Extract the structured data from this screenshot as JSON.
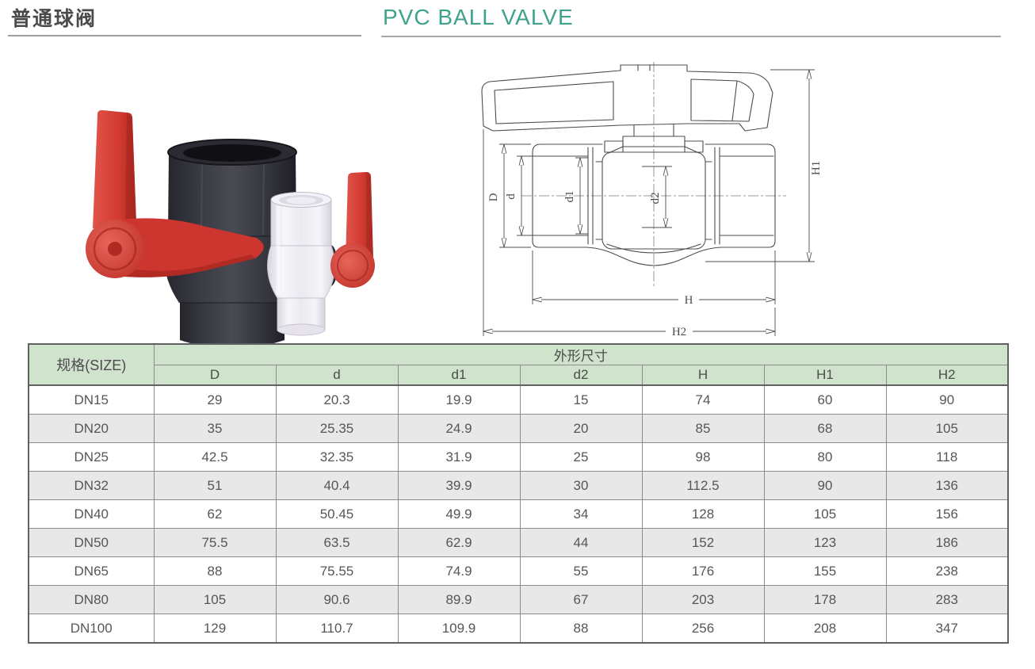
{
  "header": {
    "title_cn": "普通球阀",
    "title_en": "PVC BALL VALVE"
  },
  "photos": {
    "items": [
      "dark-gray-pvc-ball-valve-with-red-handle",
      "transparent-pvc-ball-valve-with-red-handle"
    ]
  },
  "diagram": {
    "labels": [
      "D",
      "d",
      "d1",
      "d2",
      "H",
      "H1",
      "H2"
    ]
  },
  "table": {
    "size_header": "规格(SIZE)",
    "group_header": "外形尺寸",
    "columns": [
      "D",
      "d",
      "d1",
      "d2",
      "H",
      "H1",
      "H2"
    ],
    "rows": [
      {
        "size": "DN15",
        "values": [
          "29",
          "20.3",
          "19.9",
          "15",
          "74",
          "60",
          "90"
        ]
      },
      {
        "size": "DN20",
        "values": [
          "35",
          "25.35",
          "24.9",
          "20",
          "85",
          "68",
          "105"
        ]
      },
      {
        "size": "DN25",
        "values": [
          "42.5",
          "32.35",
          "31.9",
          "25",
          "98",
          "80",
          "118"
        ]
      },
      {
        "size": "DN32",
        "values": [
          "51",
          "40.4",
          "39.9",
          "30",
          "112.5",
          "90",
          "136"
        ]
      },
      {
        "size": "DN40",
        "values": [
          "62",
          "50.45",
          "49.9",
          "34",
          "128",
          "105",
          "156"
        ]
      },
      {
        "size": "DN50",
        "values": [
          "75.5",
          "63.5",
          "62.9",
          "44",
          "152",
          "123",
          "186"
        ]
      },
      {
        "size": "DN65",
        "values": [
          "88",
          "75.55",
          "74.9",
          "55",
          "176",
          "155",
          "238"
        ]
      },
      {
        "size": "DN80",
        "values": [
          "105",
          "90.6",
          "89.9",
          "67",
          "203",
          "178",
          "283"
        ]
      },
      {
        "size": "DN100",
        "values": [
          "129",
          "110.7",
          "109.9",
          "88",
          "256",
          "208",
          "347"
        ]
      }
    ]
  },
  "colors": {
    "accent_teal": "#3fa28c",
    "table_header_green": "#cfe3cd",
    "alt_row_gray": "#e8e8e8",
    "handle_red": "#d23a31",
    "valve_dark_gray": "#35353d",
    "line_gray": "#8c8c8c"
  }
}
